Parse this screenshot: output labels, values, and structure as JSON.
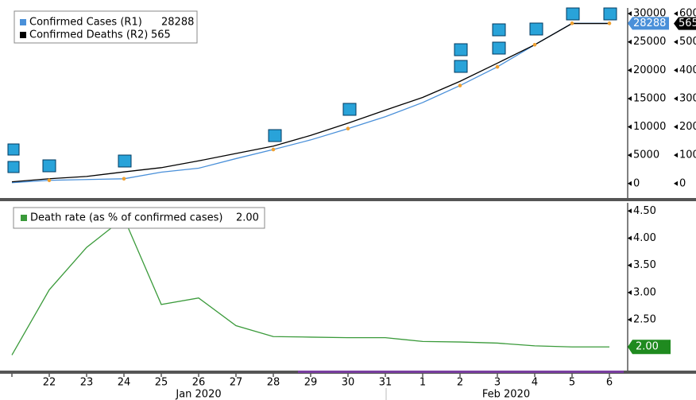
{
  "chart_data": [
    {
      "type": "line",
      "series": [
        {
          "name": "Confirmed Cases (R1)",
          "color": "#4a90d9",
          "axis": "y",
          "values": [
            150,
            560,
            700,
            840,
            2000,
            2700,
            4400,
            6000,
            7700,
            9700,
            11800,
            14300,
            17300,
            20600,
            24500,
            28288,
            28288
          ]
        },
        {
          "name": "Confirmed Deaths (R2)",
          "color": "#000000",
          "axis": "y2",
          "values": [
            6,
            17,
            25,
            41,
            56,
            80,
            106,
            132,
            170,
            213,
            259,
            304,
            361,
            425,
            490,
            565,
            565
          ]
        }
      ],
      "ylim": [
        -2700,
        31000
      ],
      "yticks": [
        0,
        5000,
        10000,
        15000,
        20000,
        25000,
        30000
      ],
      "y2lim": [
        -54,
        620
      ],
      "y2ticks": [
        0,
        100,
        200,
        300,
        400,
        500,
        600
      ]
    },
    {
      "type": "line",
      "categories": [
        null,
        "22",
        "23",
        "24",
        "25",
        "26",
        "27",
        "28",
        "29",
        "30",
        "31",
        "1",
        "2",
        "3",
        "4",
        "5",
        "6"
      ],
      "months": [
        "Jan 2020",
        "Feb 2020"
      ],
      "series": [
        {
          "name": "Death rate (as % of confirmed cases)",
          "color": "#3a9a3a",
          "values": [
            1.85,
            3.05,
            3.83,
            4.37,
            2.78,
            2.9,
            2.39,
            2.19,
            2.18,
            2.17,
            2.17,
            2.1,
            2.09,
            2.07,
            2.02,
            2,
            2
          ],
          "value_labels": [
            null,
            null,
            null,
            null,
            null,
            null,
            null,
            null,
            null,
            null,
            null,
            null,
            null,
            null,
            null,
            null,
            "2.00"
          ]
        }
      ],
      "ylim": [
        1.55,
        4.65
      ],
      "yticks": [
        {
          "value": 2.5,
          "label": "2.50"
        },
        {
          "value": 3,
          "label": "3.00"
        },
        {
          "value": 3.5,
          "label": "3.50"
        },
        {
          "value": 4,
          "label": "4.00"
        },
        {
          "value": 4.5,
          "label": "4.50"
        }
      ]
    }
  ]
}
